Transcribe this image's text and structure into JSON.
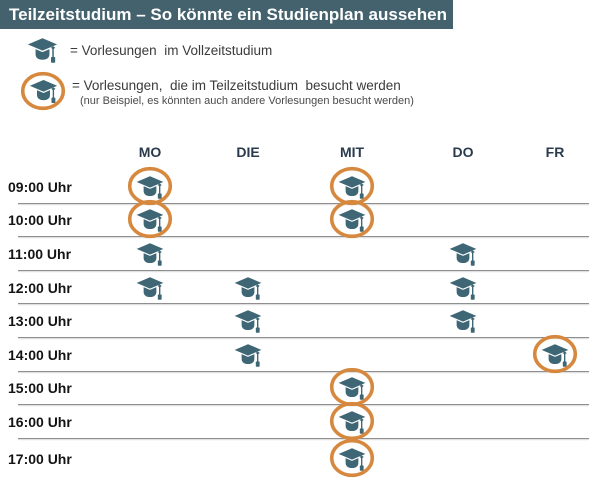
{
  "title": "Teilzeitstudium – So könnte ein Studienplan aussehen",
  "legend": {
    "fulltime": {
      "icon": "graduation-cap-icon",
      "label": "= Vorlesungen  im Vollzeitstudium"
    },
    "parttime": {
      "icon": "graduation-cap-circled-icon",
      "label": "= Vorlesungen,  die im Teilzeitstudium  besucht werden",
      "note": "(nur Beispiel, es könnten auch andere Vorlesungen besucht werden)"
    }
  },
  "schedule": {
    "days": [
      "MO",
      "DIE",
      "MIT",
      "DO",
      "FR"
    ],
    "times": [
      "09:00 Uhr",
      "10:00 Uhr",
      "11:00 Uhr",
      "12:00 Uhr",
      "13:00 Uhr",
      "14:00 Uhr",
      "15:00 Uhr",
      "16:00 Uhr",
      "17:00 Uhr"
    ],
    "entries": [
      {
        "time": "09:00 Uhr",
        "day": "MO",
        "circled": true
      },
      {
        "time": "09:00 Uhr",
        "day": "MIT",
        "circled": true
      },
      {
        "time": "10:00 Uhr",
        "day": "MO",
        "circled": true
      },
      {
        "time": "10:00 Uhr",
        "day": "MIT",
        "circled": true
      },
      {
        "time": "11:00 Uhr",
        "day": "MO",
        "circled": false
      },
      {
        "time": "11:00 Uhr",
        "day": "DO",
        "circled": false
      },
      {
        "time": "12:00 Uhr",
        "day": "MO",
        "circled": false
      },
      {
        "time": "12:00 Uhr",
        "day": "DIE",
        "circled": false
      },
      {
        "time": "12:00 Uhr",
        "day": "DO",
        "circled": false
      },
      {
        "time": "13:00 Uhr",
        "day": "DIE",
        "circled": false
      },
      {
        "time": "13:00 Uhr",
        "day": "DO",
        "circled": false
      },
      {
        "time": "14:00 Uhr",
        "day": "DIE",
        "circled": false
      },
      {
        "time": "14:00 Uhr",
        "day": "FR",
        "circled": true
      },
      {
        "time": "15:00 Uhr",
        "day": "MIT",
        "circled": true
      },
      {
        "time": "16:00 Uhr",
        "day": "MIT",
        "circled": true
      },
      {
        "time": "17:00 Uhr",
        "day": "MIT",
        "circled": true
      }
    ]
  },
  "colors": {
    "title_bar_bg": "#44626D",
    "title_text": "#FFFFFF",
    "cap": "#3E6675",
    "circle": "#D6893E",
    "row_line": "#8F8F8F",
    "day_header_text": "#2B3B4E",
    "time_text": "#141414"
  }
}
